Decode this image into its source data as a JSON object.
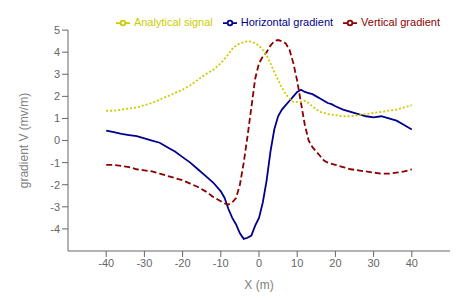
{
  "chart_data": {
    "type": "line",
    "xlabel": "X (m)",
    "ylabel": "gradient V (mv/m)",
    "xlim": [
      -50,
      50
    ],
    "ylim": [
      -5,
      5
    ],
    "xticks": [
      -40,
      -30,
      -20,
      -10,
      0,
      10,
      20,
      30,
      40
    ],
    "yticks": [
      -4,
      -3,
      -2,
      -1,
      0,
      1,
      2,
      3,
      4,
      5
    ],
    "grid": false,
    "legend": "upper right",
    "series": [
      {
        "name": "Horizontal gradient",
        "color": "#00008B",
        "line_style": "solid",
        "x": [
          -40,
          -38,
          -36,
          -34,
          -32,
          -30,
          -28,
          -26,
          -24,
          -22,
          -20,
          -18,
          -16,
          -14,
          -12,
          -10,
          -9,
          -8,
          -7,
          -6,
          -5,
          -4,
          -3,
          -2,
          -1,
          0,
          1,
          2,
          3,
          4,
          5,
          6,
          7,
          8,
          9,
          10,
          11,
          12,
          13,
          14,
          15,
          16,
          17,
          18,
          19,
          20,
          22,
          24,
          26,
          28,
          30,
          32,
          34,
          36,
          38,
          40
        ],
        "values": [
          0.45,
          0.38,
          0.3,
          0.25,
          0.2,
          0.1,
          0.0,
          -0.1,
          -0.3,
          -0.5,
          -0.75,
          -1.0,
          -1.3,
          -1.6,
          -1.9,
          -2.3,
          -2.6,
          -3.1,
          -3.5,
          -3.8,
          -4.2,
          -4.45,
          -4.4,
          -4.3,
          -3.85,
          -3.5,
          -2.8,
          -1.8,
          -0.5,
          0.5,
          1.1,
          1.4,
          1.6,
          1.8,
          2.0,
          2.2,
          2.3,
          2.2,
          2.15,
          2.1,
          2.0,
          1.9,
          1.8,
          1.7,
          1.65,
          1.55,
          1.4,
          1.3,
          1.2,
          1.1,
          1.05,
          1.1,
          1.0,
          0.9,
          0.7,
          0.5
        ]
      },
      {
        "name": "Vertical gradient",
        "color": "#8B0000",
        "line_style": "dashed",
        "x": [
          -40,
          -38,
          -36,
          -34,
          -32,
          -30,
          -28,
          -26,
          -24,
          -22,
          -20,
          -18,
          -16,
          -14,
          -12,
          -10,
          -9,
          -8,
          -7,
          -6,
          -5,
          -4,
          -3,
          -2,
          -1,
          0,
          1,
          2,
          3,
          4,
          5,
          6,
          7,
          8,
          9,
          10,
          11,
          12,
          13,
          14,
          15,
          16,
          17,
          18,
          20,
          22,
          24,
          26,
          28,
          30,
          32,
          34,
          36,
          38,
          40
        ],
        "values": [
          -1.1,
          -1.1,
          -1.15,
          -1.2,
          -1.3,
          -1.35,
          -1.4,
          -1.5,
          -1.6,
          -1.7,
          -1.8,
          -1.95,
          -2.1,
          -2.3,
          -2.55,
          -2.75,
          -2.85,
          -2.9,
          -2.8,
          -2.6,
          -2.0,
          -1.0,
          0.2,
          1.5,
          2.8,
          3.5,
          3.8,
          4.0,
          4.3,
          4.5,
          4.55,
          4.5,
          4.4,
          4.1,
          3.5,
          2.7,
          1.7,
          0.7,
          0.0,
          -0.3,
          -0.5,
          -0.7,
          -0.9,
          -1.0,
          -1.1,
          -1.2,
          -1.3,
          -1.35,
          -1.4,
          -1.45,
          -1.5,
          -1.5,
          -1.45,
          -1.4,
          -1.3
        ]
      },
      {
        "name": "Analytical signal",
        "color": "#CCCC00",
        "line_style": "dotted",
        "x": [
          -40,
          -38,
          -36,
          -34,
          -32,
          -30,
          -28,
          -26,
          -24,
          -22,
          -20,
          -18,
          -16,
          -14,
          -12,
          -10,
          -9,
          -8,
          -7,
          -6,
          -5,
          -4,
          -3,
          -2,
          -1,
          0,
          1,
          2,
          3,
          4,
          5,
          6,
          7,
          8,
          9,
          10,
          11,
          12,
          13,
          14,
          15,
          16,
          17,
          18,
          20,
          22,
          24,
          26,
          28,
          30,
          32,
          34,
          36,
          38,
          40
        ],
        "values": [
          1.35,
          1.35,
          1.4,
          1.45,
          1.5,
          1.6,
          1.7,
          1.85,
          2.0,
          2.15,
          2.3,
          2.5,
          2.75,
          3.0,
          3.2,
          3.5,
          3.7,
          3.9,
          4.15,
          4.3,
          4.4,
          4.45,
          4.5,
          4.48,
          4.4,
          4.3,
          4.1,
          3.85,
          3.5,
          3.1,
          2.75,
          2.4,
          2.1,
          1.9,
          1.75,
          1.75,
          1.75,
          1.8,
          1.7,
          1.55,
          1.4,
          1.3,
          1.25,
          1.2,
          1.15,
          1.1,
          1.1,
          1.15,
          1.2,
          1.25,
          1.3,
          1.35,
          1.4,
          1.5,
          1.6
        ]
      }
    ]
  }
}
